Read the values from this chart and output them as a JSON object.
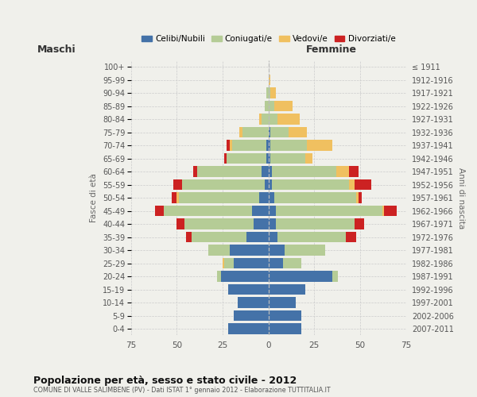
{
  "age_groups": [
    "0-4",
    "5-9",
    "10-14",
    "15-19",
    "20-24",
    "25-29",
    "30-34",
    "35-39",
    "40-44",
    "45-49",
    "50-54",
    "55-59",
    "60-64",
    "65-69",
    "70-74",
    "75-79",
    "80-84",
    "85-89",
    "90-94",
    "95-99",
    "100+"
  ],
  "birth_years": [
    "2007-2011",
    "2002-2006",
    "1997-2001",
    "1992-1996",
    "1987-1991",
    "1982-1986",
    "1977-1981",
    "1972-1976",
    "1967-1971",
    "1962-1966",
    "1957-1961",
    "1952-1956",
    "1947-1951",
    "1942-1946",
    "1937-1941",
    "1932-1936",
    "1927-1931",
    "1922-1926",
    "1917-1921",
    "1912-1916",
    "≤ 1911"
  ],
  "males": {
    "celibi": [
      22,
      19,
      17,
      22,
      26,
      19,
      21,
      12,
      8,
      9,
      5,
      2,
      4,
      1,
      1,
      0,
      0,
      0,
      0,
      0,
      0
    ],
    "coniugati": [
      0,
      0,
      0,
      0,
      2,
      5,
      12,
      30,
      38,
      48,
      44,
      45,
      35,
      22,
      19,
      14,
      4,
      2,
      1,
      0,
      0
    ],
    "vedovi": [
      0,
      0,
      0,
      0,
      0,
      1,
      0,
      0,
      0,
      0,
      1,
      0,
      0,
      0,
      1,
      2,
      1,
      0,
      0,
      0,
      0
    ],
    "divorziati": [
      0,
      0,
      0,
      0,
      0,
      0,
      0,
      3,
      4,
      5,
      3,
      5,
      2,
      1,
      2,
      0,
      0,
      0,
      0,
      0,
      0
    ]
  },
  "females": {
    "nubili": [
      18,
      18,
      15,
      20,
      35,
      8,
      9,
      5,
      4,
      4,
      3,
      2,
      2,
      1,
      1,
      1,
      0,
      0,
      0,
      0,
      0
    ],
    "coniugate": [
      0,
      0,
      0,
      0,
      3,
      10,
      22,
      37,
      43,
      58,
      45,
      42,
      35,
      19,
      20,
      10,
      5,
      3,
      1,
      0,
      0
    ],
    "vedove": [
      0,
      0,
      0,
      0,
      0,
      0,
      0,
      0,
      0,
      1,
      1,
      3,
      7,
      4,
      14,
      10,
      12,
      10,
      3,
      1,
      0
    ],
    "divorziate": [
      0,
      0,
      0,
      0,
      0,
      0,
      0,
      6,
      5,
      7,
      2,
      9,
      5,
      0,
      0,
      0,
      0,
      0,
      0,
      0,
      0
    ]
  },
  "colors": {
    "celibi": "#4472a8",
    "coniugati": "#b5cc96",
    "vedovi": "#f0c060",
    "divorziati": "#cc2222"
  },
  "title": "Popolazione per età, sesso e stato civile - 2012",
  "subtitle": "COMUNE DI VALLE SALIMBENE (PV) - Dati ISTAT 1° gennaio 2012 - Elaborazione TUTTITALIA.IT",
  "xlabel_left": "Maschi",
  "xlabel_right": "Femmine",
  "ylabel_left": "Fasce di età",
  "ylabel_right": "Anni di nascita",
  "legend_labels": [
    "Celibi/Nubili",
    "Coniugati/e",
    "Vedovi/e",
    "Divorziati/e"
  ],
  "xlim": 75,
  "background_color": "#f0f0eb"
}
